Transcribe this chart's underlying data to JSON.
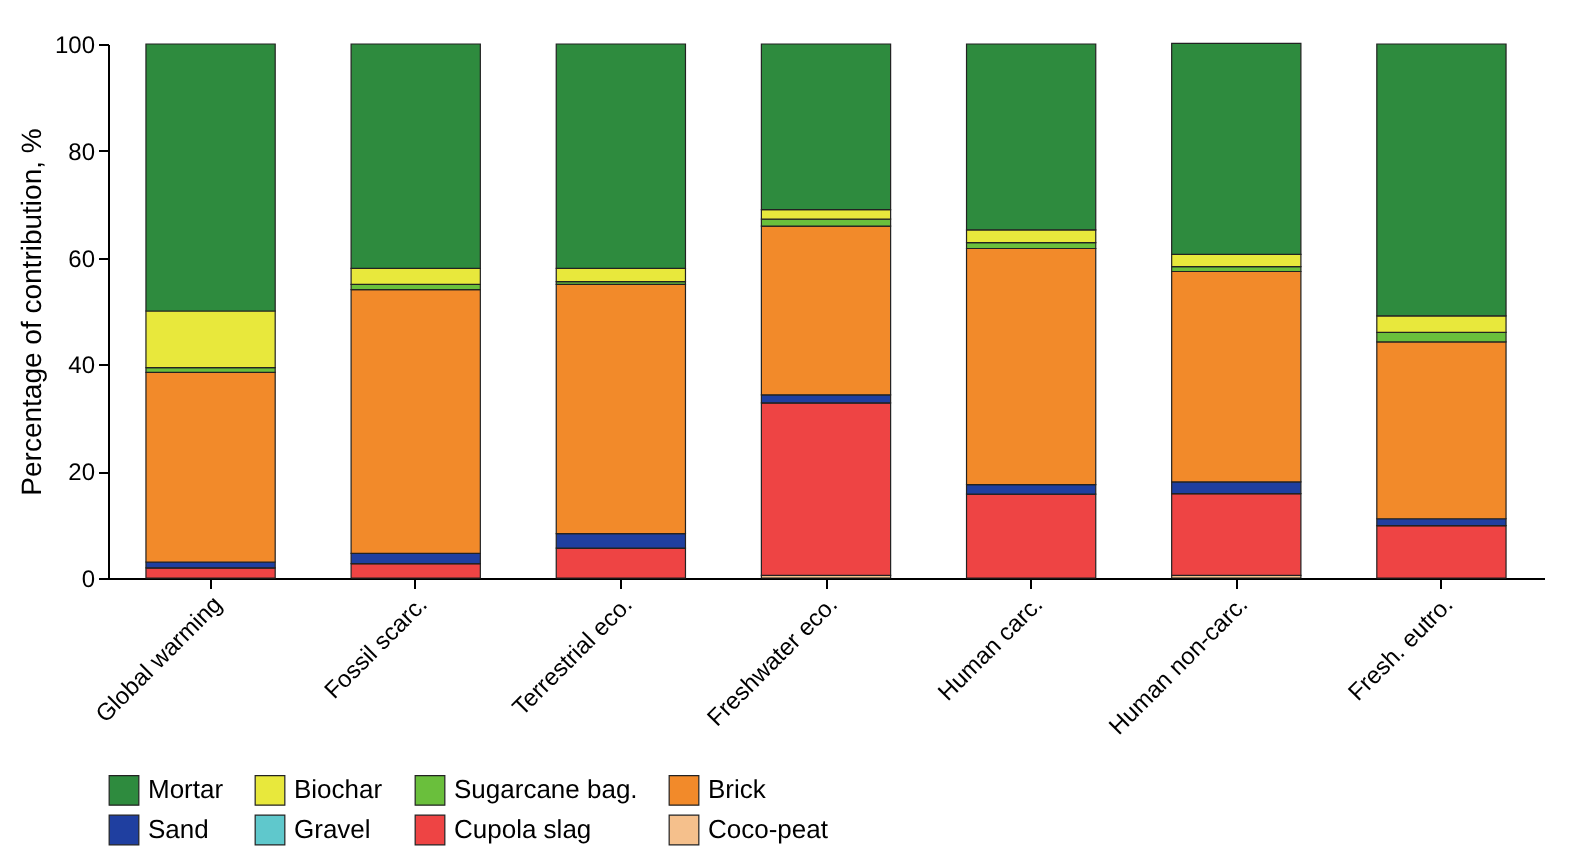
{
  "chart_data": {
    "type": "bar",
    "stacked": true,
    "ylabel": "Percentage of contribution, %",
    "categories": [
      "Global warming",
      "Fossil scarc.",
      "Terrestrial eco.",
      "Freshwater eco.",
      "Human carc.",
      "Human non-carc.",
      "Fresh. eutro."
    ],
    "series": [
      {
        "name": "Coco-peat",
        "color": "#f5c08c",
        "values": [
          0,
          0,
          0,
          0.5,
          0,
          0.5,
          0
        ]
      },
      {
        "name": "Cupola slag",
        "color": "#ee4444",
        "values": [
          1.9,
          2.7,
          5.6,
          32.3,
          15.7,
          15.3,
          9.8
        ]
      },
      {
        "name": "Gravel",
        "color": "#5fc8cc",
        "values": [
          0,
          0,
          0,
          0,
          0,
          0,
          0
        ]
      },
      {
        "name": "Sand",
        "color": "#1f3fa0",
        "values": [
          1.1,
          1.9,
          2.7,
          1.5,
          1.8,
          2.2,
          1.3
        ]
      },
      {
        "name": "Brick",
        "color": "#f28a2a",
        "values": [
          35.5,
          49.4,
          46.7,
          31.6,
          44.2,
          39.4,
          33.1
        ]
      },
      {
        "name": "Sugarcane bag.",
        "color": "#6abf3c",
        "values": [
          0.9,
          1,
          0.5,
          1.3,
          1.1,
          0.9,
          1.8
        ]
      },
      {
        "name": "Biochar",
        "color": "#e8e83c",
        "values": [
          10.6,
          3,
          2.5,
          1.8,
          2.4,
          2.3,
          3.1
        ]
      },
      {
        "name": "Mortar",
        "color": "#2e8b3e",
        "values": [
          50,
          42,
          42,
          31,
          34.8,
          39.5,
          50.9
        ]
      }
    ],
    "ylim": [
      0,
      100
    ],
    "yticks": [
      0,
      20,
      40,
      60,
      80,
      100
    ],
    "grid": false,
    "legend": "bottom"
  }
}
